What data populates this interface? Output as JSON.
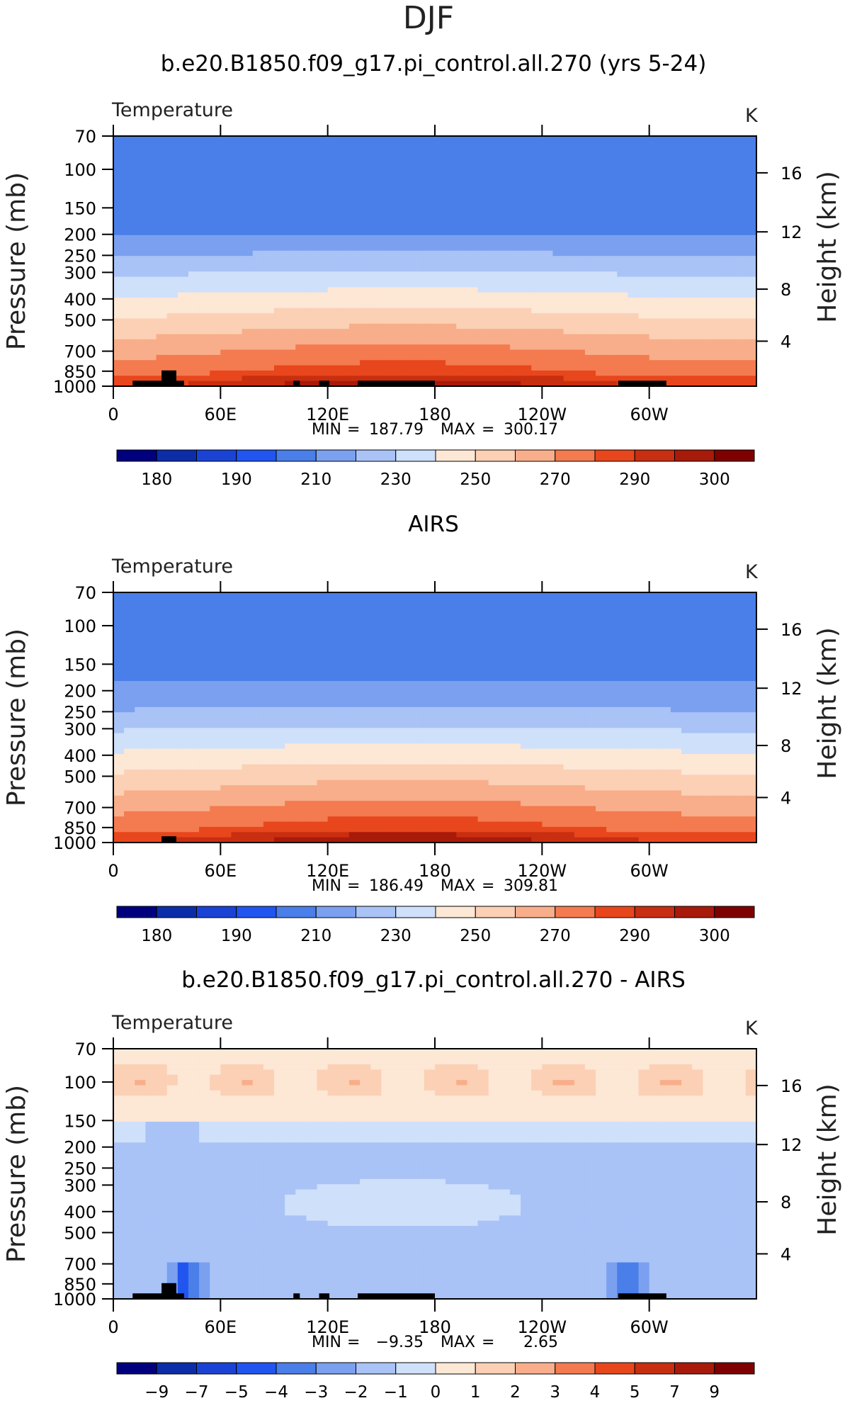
{
  "page": {
    "title": "DJF"
  },
  "scale": {
    "abs_levels": [
      180,
      185,
      190,
      200,
      210,
      220,
      230,
      240,
      250,
      260,
      270,
      280,
      290,
      295,
      300
    ],
    "abs_labels": [
      "180",
      "190",
      "210",
      "230",
      "250",
      "270",
      "290",
      "300"
    ],
    "diff_labels": [
      "−9",
      "−7",
      "−5",
      "−4",
      "−3",
      "−2",
      "−1",
      "0",
      "1",
      "2",
      "3",
      "4",
      "5",
      "7",
      "9"
    ],
    "colors": [
      "#00007f",
      "#0b2ea8",
      "#1a43d6",
      "#2155f0",
      "#4a7ee8",
      "#7aa0ef",
      "#a9c3f7",
      "#cfe0fb",
      "#fde7d5",
      "#fbd0b5",
      "#f8ae8a",
      "#f47a50",
      "#e8461c",
      "#c82e10",
      "#a81a0a",
      "#7f0000"
    ]
  },
  "chart_data": [
    {
      "type": "heatmap",
      "title": "b.e20.B1850.f09_g17.pi_control.all.270 (yrs 5-24)",
      "variable": "Temperature",
      "units": "K",
      "ylabel": "Pressure (mb)",
      "y2label": "Height (km)",
      "y_ticks": [
        "70",
        "100",
        "150",
        "200",
        "250",
        "300",
        "400",
        "500",
        "700",
        "850",
        "1000"
      ],
      "y2_ticks": [
        "16",
        "12",
        "8",
        "4"
      ],
      "x_ticks": [
        "0",
        "60E",
        "120E",
        "180",
        "120W",
        "60W"
      ],
      "stats": {
        "min_label": "MIN",
        "min": "187.79",
        "max_label": "MAX",
        "max": "300.17"
      },
      "levels": [
        180,
        185,
        190,
        200,
        210,
        220,
        230,
        240,
        250,
        260,
        270,
        280,
        290,
        295,
        300
      ],
      "colorbar_labels": [
        "180",
        "190",
        "210",
        "230",
        "250",
        "270",
        "290",
        "300"
      ]
    },
    {
      "type": "heatmap",
      "title": "AIRS",
      "variable": "Temperature",
      "units": "K",
      "ylabel": "Pressure (mb)",
      "y2label": "Height (km)",
      "y_ticks": [
        "70",
        "100",
        "150",
        "200",
        "250",
        "300",
        "400",
        "500",
        "700",
        "850",
        "1000"
      ],
      "y2_ticks": [
        "16",
        "12",
        "8",
        "4"
      ],
      "x_ticks": [
        "0",
        "60E",
        "120E",
        "180",
        "120W",
        "60W"
      ],
      "stats": {
        "min_label": "MIN",
        "min": "186.49",
        "max_label": "MAX",
        "max": "309.81"
      },
      "levels": [
        180,
        185,
        190,
        200,
        210,
        220,
        230,
        240,
        250,
        260,
        270,
        280,
        290,
        295,
        300
      ],
      "colorbar_labels": [
        "180",
        "190",
        "210",
        "230",
        "250",
        "270",
        "290",
        "300"
      ]
    },
    {
      "type": "heatmap",
      "title": "b.e20.B1850.f09_g17.pi_control.all.270 - AIRS",
      "variable": "Temperature",
      "units": "K",
      "ylabel": "Pressure (mb)",
      "y2label": "Height (km)",
      "y_ticks": [
        "70",
        "100",
        "150",
        "200",
        "250",
        "300",
        "400",
        "500",
        "700",
        "850",
        "1000"
      ],
      "y2_ticks": [
        "16",
        "12",
        "8",
        "4"
      ],
      "x_ticks": [
        "0",
        "60E",
        "120E",
        "180",
        "120W",
        "60W"
      ],
      "stats": {
        "min_label": "MIN",
        "min": "−9.35",
        "max_label": "MAX",
        "max": "2.65"
      },
      "levels": [
        -9,
        -7,
        -5,
        -4,
        -3,
        -2,
        -1,
        0,
        1,
        2,
        3,
        4,
        5,
        7,
        9
      ],
      "colorbar_labels": [
        "−9",
        "−7",
        "−5",
        "−4",
        "−3",
        "−2",
        "−1",
        "0",
        "1",
        "2",
        "3",
        "4",
        "5",
        "7",
        "9"
      ]
    }
  ]
}
